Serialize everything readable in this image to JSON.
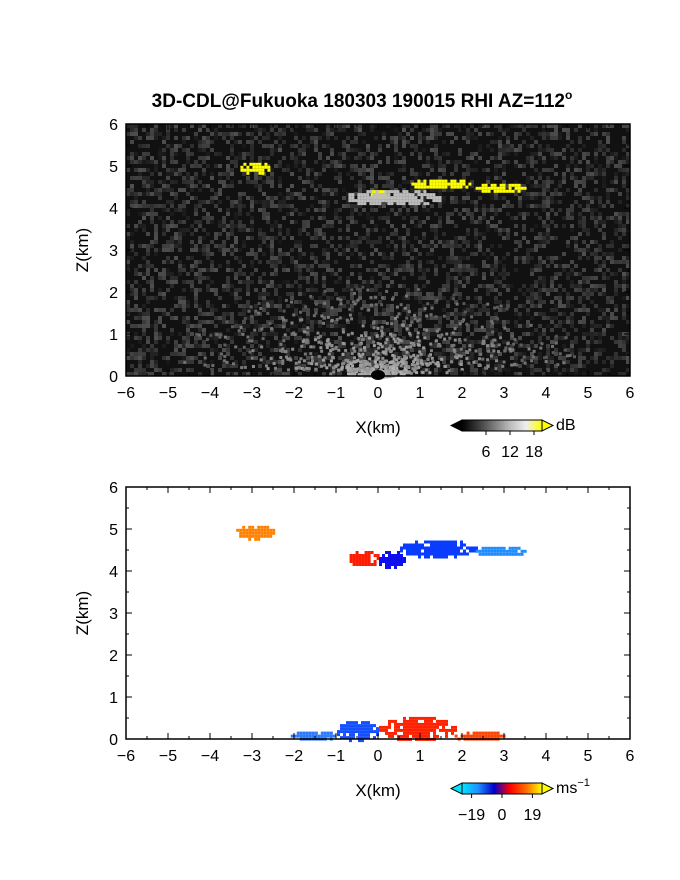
{
  "figure": {
    "title": "3D-CDL@Fukuoka 180303 190015 RHI AZ=112",
    "title_superscript": "o"
  },
  "chart_data": [
    {
      "type": "heatmap",
      "name": "reflectivity",
      "xlabel": "X(km)",
      "ylabel": "Z(km)",
      "xlim": [
        -6,
        6
      ],
      "ylim": [
        0,
        6
      ],
      "xticks": [
        -6,
        -5,
        -4,
        -3,
        -2,
        -1,
        0,
        1,
        2,
        3,
        4,
        5,
        6
      ],
      "yticks": [
        0,
        1,
        2,
        3,
        4,
        5,
        6
      ],
      "background": "#111111",
      "colorbar": {
        "unit": "dB",
        "tick_labels": [
          "6",
          "12",
          "18"
        ],
        "ticks": [
          6,
          12,
          18
        ],
        "range": [
          0,
          20
        ],
        "colors": [
          "#000000",
          "#3a3a3a",
          "#7a7a7a",
          "#bbbbbb",
          "#eeeeee",
          "#ffff00"
        ]
      },
      "features": [
        {
          "label": "cloud echo",
          "x": [
            -3.3,
            -2.6
          ],
          "z": [
            4.85,
            5.1
          ],
          "value": 19,
          "color": "#ffff00"
        },
        {
          "label": "cloud echo",
          "x": [
            0.7,
            2.2
          ],
          "z": [
            4.5,
            4.7
          ],
          "value": 19,
          "color": "#ffff00"
        },
        {
          "label": "cloud echo",
          "x": [
            2.3,
            3.5
          ],
          "z": [
            4.4,
            4.6
          ],
          "value": 19,
          "color": "#ffff00"
        },
        {
          "label": "cloud echo",
          "x": [
            -0.2,
            0.2
          ],
          "z": [
            4.25,
            4.45
          ],
          "value": 19,
          "color": "#ffff00"
        },
        {
          "label": "cloud echo",
          "x": [
            -0.8,
            1.5
          ],
          "z": [
            4.1,
            4.45
          ],
          "value": 10,
          "color": "#bdbdbd"
        },
        {
          "label": "near-ground echo",
          "x": [
            -1.0,
            1.5
          ],
          "z": [
            0.0,
            0.6
          ],
          "value": 8,
          "color": "#9a9a9a"
        }
      ]
    },
    {
      "type": "heatmap",
      "name": "doppler velocity",
      "xlabel": "X(km)",
      "ylabel": "Z(km)",
      "xlim": [
        -6,
        6
      ],
      "ylim": [
        0,
        6
      ],
      "xticks": [
        -6,
        -5,
        -4,
        -3,
        -2,
        -1,
        0,
        1,
        2,
        3,
        4,
        5,
        6
      ],
      "yticks": [
        0,
        1,
        2,
        3,
        4,
        5,
        6
      ],
      "background": "#ffffff",
      "colorbar": {
        "unit": "ms",
        "unit_superscript": "−1",
        "tick_labels": [
          "−19",
          "0",
          "19"
        ],
        "ticks": [
          -19,
          0,
          19
        ],
        "range": [
          -25,
          25
        ],
        "colors": [
          "#00e5ff",
          "#1e90ff",
          "#0000cc",
          "#ff0000",
          "#ff6a00",
          "#ffff00"
        ]
      },
      "features": [
        {
          "label": "velocity patch",
          "x": [
            -3.4,
            -2.5
          ],
          "z": [
            4.8,
            5.1
          ],
          "value": 14,
          "color": "#ff8000"
        },
        {
          "label": "velocity patch",
          "x": [
            -0.7,
            0.0
          ],
          "z": [
            4.15,
            4.5
          ],
          "value": 5,
          "color": "#ff1a00"
        },
        {
          "label": "velocity patch",
          "x": [
            0.0,
            0.6
          ],
          "z": [
            4.1,
            4.5
          ],
          "value": -9,
          "color": "#1010ee"
        },
        {
          "label": "velocity patch",
          "x": [
            0.5,
            2.3
          ],
          "z": [
            4.35,
            4.75
          ],
          "value": -11,
          "color": "#0a3cff"
        },
        {
          "label": "velocity patch",
          "x": [
            2.3,
            3.5
          ],
          "z": [
            4.4,
            4.6
          ],
          "value": -15,
          "color": "#1e8cff"
        },
        {
          "label": "velocity patch",
          "x": [
            -2.1,
            -1.0
          ],
          "z": [
            0.0,
            0.2
          ],
          "value": -15,
          "color": "#2a78ff"
        },
        {
          "label": "velocity patch",
          "x": [
            -1.0,
            0.0
          ],
          "z": [
            0.0,
            0.45
          ],
          "value": -11,
          "color": "#1450ff"
        },
        {
          "label": "velocity patch",
          "x": [
            0.0,
            1.8
          ],
          "z": [
            0.0,
            0.55
          ],
          "value": 5,
          "color": "#ff2200"
        },
        {
          "label": "velocity patch",
          "x": [
            1.8,
            3.0
          ],
          "z": [
            0.0,
            0.2
          ],
          "value": 9,
          "color": "#ff4400"
        }
      ]
    }
  ]
}
